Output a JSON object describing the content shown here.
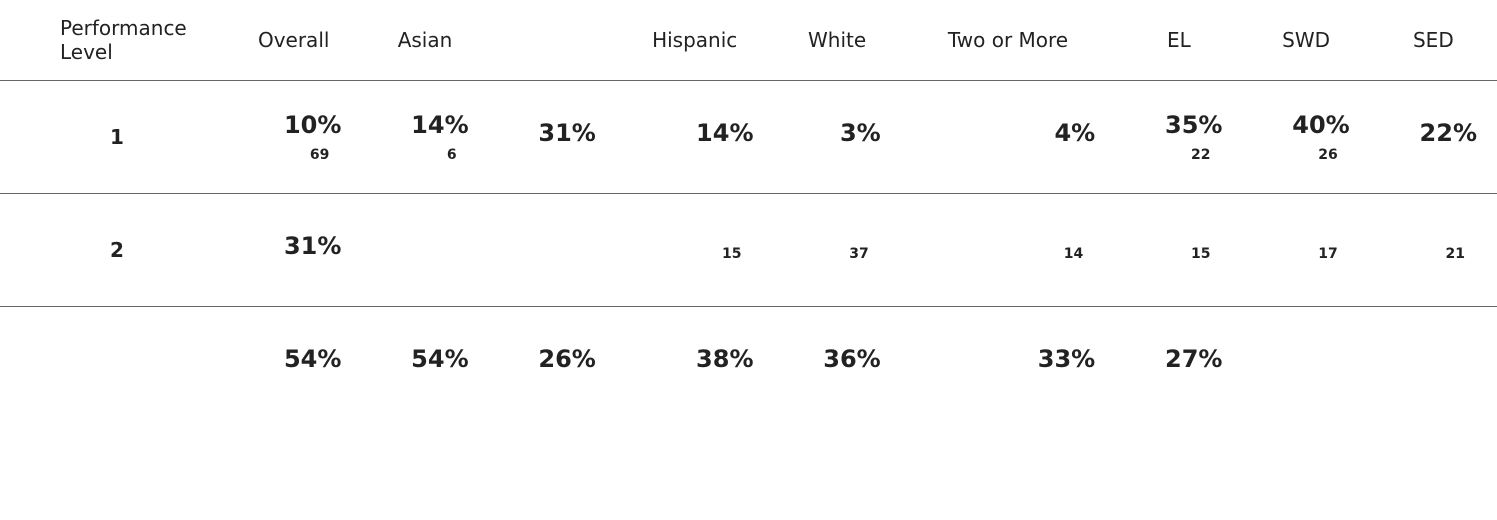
{
  "table": {
    "headers": [
      "Performance Level",
      "Overall",
      "Asian",
      null,
      "Hispanic",
      "White",
      "Two or More",
      "EL",
      "SWD",
      "SED"
    ],
    "rows": [
      {
        "label": "1",
        "cells": [
          {
            "pct": "10%",
            "count": "69"
          },
          {
            "pct": "14%",
            "count": "6"
          },
          {
            "pct": "31%",
            "count": null
          },
          {
            "pct": "14%",
            "count": null
          },
          {
            "pct": "3%",
            "count": null
          },
          {
            "pct": "4%",
            "count": null
          },
          {
            "pct": "35%",
            "count": "22"
          },
          {
            "pct": "40%",
            "count": "26"
          },
          {
            "pct": "22%",
            "count": null
          }
        ]
      },
      {
        "label": "2",
        "cells": [
          {
            "pct": "31%",
            "count": null
          },
          {
            "pct": null,
            "count": null
          },
          {
            "pct": null,
            "count": null
          },
          {
            "pct": null,
            "count": "15"
          },
          {
            "pct": null,
            "count": "37"
          },
          {
            "pct": null,
            "count": "14"
          },
          {
            "pct": null,
            "count": "15"
          },
          {
            "pct": null,
            "count": "17"
          },
          {
            "pct": null,
            "count": "21"
          }
        ]
      },
      {
        "label": null,
        "cells": [
          {
            "pct": "54%",
            "count": null
          },
          {
            "pct": "54%",
            "count": null
          },
          {
            "pct": "26%",
            "count": null
          },
          {
            "pct": "38%",
            "count": null
          },
          {
            "pct": "36%",
            "count": null
          },
          {
            "pct": "33%",
            "count": null
          },
          {
            "pct": "27%",
            "count": null
          },
          {
            "pct": null,
            "count": null
          },
          {
            "pct": null,
            "count": null
          }
        ]
      }
    ]
  }
}
